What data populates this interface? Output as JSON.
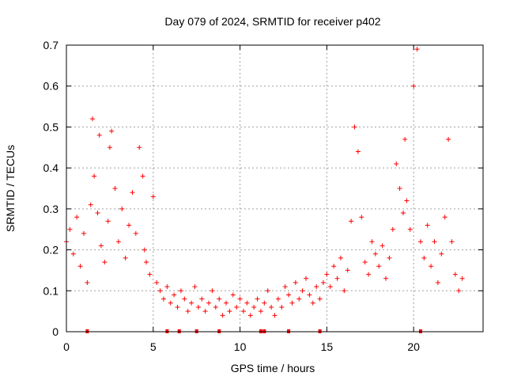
{
  "chart_data": {
    "type": "scatter",
    "title": "Day 079 of 2024, SRMTID for receiver p402",
    "xlabel": "GPS time / hours",
    "ylabel": "SRMTID / TECUs",
    "xlim": [
      0,
      24
    ],
    "ylim": [
      0,
      0.7
    ],
    "x_ticks": [
      0,
      5,
      10,
      15,
      20
    ],
    "x_tick_labels": [
      "0",
      "5",
      "10",
      "15",
      "20"
    ],
    "y_ticks": [
      0,
      0.1,
      0.2,
      0.3,
      0.4,
      0.5,
      0.6,
      0.7
    ],
    "y_tick_labels": [
      "0",
      "0.1",
      "0.2",
      "0.3",
      "0.4",
      "0.5",
      "0.6",
      "0.7"
    ],
    "grid": true,
    "marker": "plus",
    "color": "#ff0000",
    "series": [
      {
        "name": "SRMTID",
        "x": [
          0.0,
          0.2,
          0.4,
          0.6,
          0.8,
          1.0,
          1.2,
          1.4,
          1.5,
          1.6,
          1.8,
          1.9,
          2.0,
          2.2,
          2.4,
          2.5,
          2.6,
          2.8,
          3.0,
          3.2,
          3.4,
          3.6,
          3.8,
          4.0,
          4.2,
          4.4,
          4.5,
          4.6,
          4.8,
          5.0,
          5.2,
          5.4,
          5.6,
          5.8,
          6.0,
          6.2,
          6.4,
          6.6,
          6.8,
          7.0,
          7.2,
          7.4,
          7.6,
          7.8,
          8.0,
          8.2,
          8.4,
          8.6,
          8.8,
          9.0,
          9.2,
          9.4,
          9.6,
          9.8,
          10.0,
          10.2,
          10.4,
          10.6,
          10.8,
          11.0,
          11.2,
          11.4,
          11.6,
          11.8,
          12.0,
          12.2,
          12.4,
          12.6,
          12.8,
          13.0,
          13.2,
          13.4,
          13.6,
          13.8,
          14.0,
          14.2,
          14.4,
          14.6,
          14.8,
          15.0,
          15.2,
          15.4,
          15.6,
          15.8,
          16.0,
          16.2,
          16.4,
          16.6,
          16.8,
          17.0,
          17.2,
          17.4,
          17.6,
          17.8,
          18.0,
          18.2,
          18.4,
          18.6,
          18.8,
          19.0,
          19.2,
          19.4,
          19.5,
          19.6,
          19.8,
          20.0,
          20.2,
          20.4,
          20.6,
          20.8,
          21.0,
          21.2,
          21.4,
          21.6,
          21.8,
          22.0,
          22.2,
          22.4,
          22.6,
          22.8
        ],
        "y": [
          0.22,
          0.25,
          0.19,
          0.28,
          0.16,
          0.24,
          0.12,
          0.31,
          0.52,
          0.38,
          0.29,
          0.48,
          0.21,
          0.17,
          0.27,
          0.45,
          0.49,
          0.35,
          0.22,
          0.3,
          0.18,
          0.26,
          0.34,
          0.24,
          0.45,
          0.38,
          0.2,
          0.17,
          0.14,
          0.33,
          0.12,
          0.1,
          0.08,
          0.11,
          0.07,
          0.09,
          0.06,
          0.1,
          0.08,
          0.05,
          0.07,
          0.11,
          0.06,
          0.08,
          0.05,
          0.07,
          0.1,
          0.06,
          0.08,
          0.04,
          0.07,
          0.05,
          0.09,
          0.06,
          0.08,
          0.05,
          0.07,
          0.04,
          0.06,
          0.08,
          0.05,
          0.07,
          0.1,
          0.06,
          0.04,
          0.08,
          0.06,
          0.11,
          0.09,
          0.07,
          0.12,
          0.08,
          0.1,
          0.13,
          0.09,
          0.07,
          0.11,
          0.08,
          0.12,
          0.14,
          0.11,
          0.16,
          0.13,
          0.18,
          0.1,
          0.15,
          0.27,
          0.5,
          0.44,
          0.28,
          0.17,
          0.14,
          0.22,
          0.19,
          0.16,
          0.21,
          0.13,
          0.18,
          0.25,
          0.41,
          0.35,
          0.29,
          0.47,
          0.32,
          0.25,
          0.6,
          0.69,
          0.22,
          0.18,
          0.26,
          0.16,
          0.22,
          0.12,
          0.19,
          0.28,
          0.47,
          0.22,
          0.14,
          0.1,
          0.13
        ]
      }
    ],
    "tick_marks_x": [
      1.2,
      5.8,
      6.5,
      7.5,
      8.8,
      11.2,
      11.4,
      12.8,
      14.6,
      20.4
    ]
  }
}
